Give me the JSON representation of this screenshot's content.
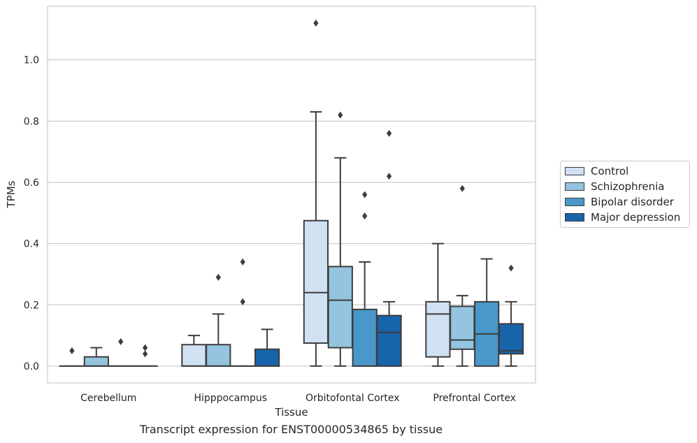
{
  "chart_data": {
    "type": "box",
    "title": "",
    "caption": "Transcript expression for ENST00000534865 by tissue",
    "xlabel": "Tissue",
    "ylabel": "TPMs",
    "ylim": [
      -0.055,
      1.175
    ],
    "yticks": [
      0.0,
      0.2,
      0.4,
      0.6,
      0.8,
      1.0
    ],
    "ytick_labels": [
      "0.0",
      "0.2",
      "0.4",
      "0.6",
      "0.8",
      "1.0"
    ],
    "grid": "horizontal",
    "legend_position": "right",
    "categories": [
      "Cerebellum",
      "Hipppocampus",
      "Orbitofontal Cortex",
      "Prefrontal Cortex"
    ],
    "series": [
      {
        "name": "Control",
        "color": "#d0e1f2",
        "boxes": [
          {
            "min": 0.0,
            "q1": 0.0,
            "median": 0.0,
            "q3": 0.0,
            "max": 0.0,
            "outliers": [
              0.05
            ]
          },
          {
            "min": 0.0,
            "q1": 0.0,
            "median": 0.0,
            "q3": 0.07,
            "max": 0.1,
            "outliers": []
          },
          {
            "min": 0.0,
            "q1": 0.075,
            "median": 0.24,
            "q3": 0.475,
            "max": 0.83,
            "outliers": [
              1.12
            ]
          },
          {
            "min": 0.0,
            "q1": 0.03,
            "median": 0.17,
            "q3": 0.21,
            "max": 0.4,
            "outliers": []
          }
        ]
      },
      {
        "name": "Schizophrenia",
        "color": "#94c4df",
        "boxes": [
          {
            "min": 0.0,
            "q1": 0.0,
            "median": 0.0,
            "q3": 0.03,
            "max": 0.06,
            "outliers": []
          },
          {
            "min": 0.0,
            "q1": 0.0,
            "median": 0.0,
            "q3": 0.07,
            "max": 0.17,
            "outliers": [
              0.29
            ]
          },
          {
            "min": 0.0,
            "q1": 0.06,
            "median": 0.215,
            "q3": 0.325,
            "max": 0.68,
            "outliers": [
              0.82
            ]
          },
          {
            "min": 0.0,
            "q1": 0.055,
            "median": 0.085,
            "q3": 0.195,
            "max": 0.23,
            "outliers": [
              0.58
            ]
          }
        ]
      },
      {
        "name": "Bipolar disorder",
        "color": "#4a98c9",
        "boxes": [
          {
            "min": 0.0,
            "q1": 0.0,
            "median": 0.0,
            "q3": 0.0,
            "max": 0.0,
            "outliers": [
              0.08
            ]
          },
          {
            "min": 0.0,
            "q1": 0.0,
            "median": 0.0,
            "q3": 0.0,
            "max": 0.0,
            "outliers": [
              0.21,
              0.34
            ]
          },
          {
            "min": 0.0,
            "q1": 0.0,
            "median": 0.0,
            "q3": 0.185,
            "max": 0.34,
            "outliers": [
              0.49,
              0.56
            ]
          },
          {
            "min": 0.0,
            "q1": 0.0,
            "median": 0.105,
            "q3": 0.21,
            "max": 0.35,
            "outliers": []
          }
        ]
      },
      {
        "name": "Major depression",
        "color": "#1764ab",
        "boxes": [
          {
            "min": 0.0,
            "q1": 0.0,
            "median": 0.0,
            "q3": 0.0,
            "max": 0.0,
            "outliers": [
              0.04,
              0.06
            ]
          },
          {
            "min": 0.0,
            "q1": 0.0,
            "median": 0.0,
            "q3": 0.055,
            "max": 0.12,
            "outliers": []
          },
          {
            "min": 0.0,
            "q1": 0.0,
            "median": 0.11,
            "q3": 0.165,
            "max": 0.21,
            "outliers": [
              0.62,
              0.76
            ]
          },
          {
            "min": 0.0,
            "q1": 0.04,
            "median": 0.05,
            "q3": 0.138,
            "max": 0.21,
            "outliers": [
              0.32
            ]
          }
        ]
      }
    ]
  }
}
